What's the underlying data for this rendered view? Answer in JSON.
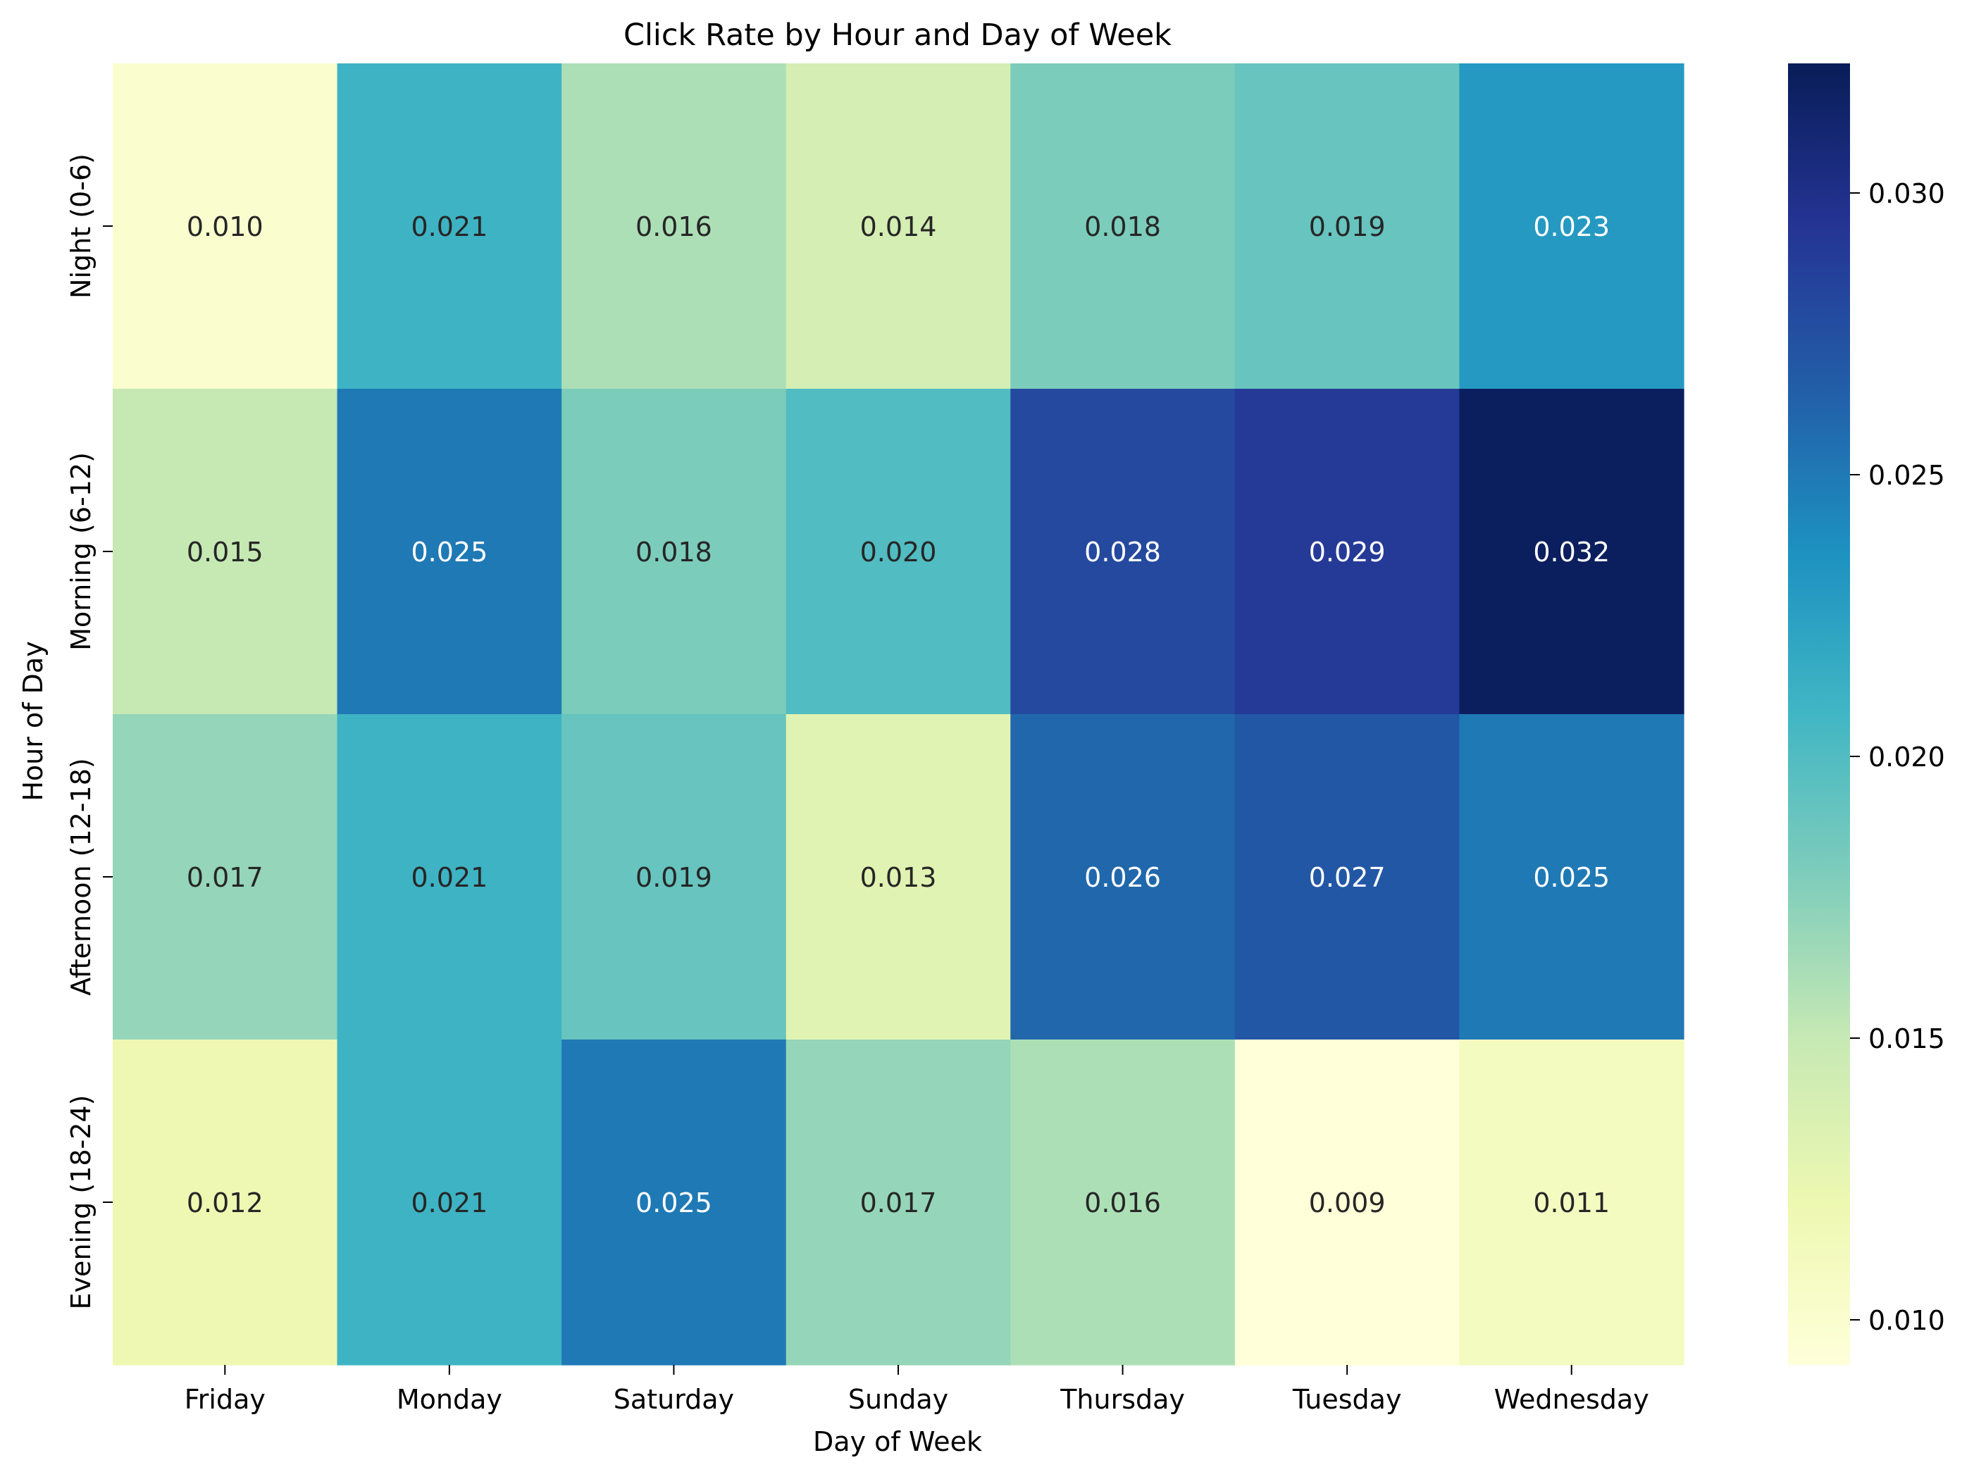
{
  "chart_data": {
    "type": "heatmap",
    "title": "Click Rate by Hour and Day of Week",
    "xlabel": "Day of Week",
    "ylabel": "Hour of Day",
    "x_categories": [
      "Friday",
      "Monday",
      "Saturday",
      "Sunday",
      "Thursday",
      "Tuesday",
      "Wednesday"
    ],
    "y_categories": [
      "Night (0-6)",
      "Morning (6-12)",
      "Afternoon (12-18)",
      "Evening (18-24)"
    ],
    "values": [
      [
        0.01,
        0.021,
        0.016,
        0.014,
        0.018,
        0.019,
        0.023
      ],
      [
        0.015,
        0.025,
        0.018,
        0.02,
        0.028,
        0.029,
        0.032
      ],
      [
        0.017,
        0.021,
        0.019,
        0.013,
        0.026,
        0.027,
        0.025
      ],
      [
        0.012,
        0.021,
        0.025,
        0.017,
        0.016,
        0.009,
        0.011
      ]
    ],
    "value_format": "0.000",
    "colormap": "YlGnBu",
    "colorbar": {
      "range": [
        0.0092,
        0.0323
      ],
      "ticks": [
        0.01,
        0.015,
        0.02,
        0.025,
        0.03
      ],
      "tick_labels": [
        "0.010",
        "0.015",
        "0.020",
        "0.025",
        "0.030"
      ]
    },
    "cmap_stops": [
      "#ffffd9",
      "#edf8b1",
      "#c7e9b4",
      "#7fcdbb",
      "#41b6c4",
      "#1d91c0",
      "#225ea8",
      "#253494",
      "#081d58"
    ]
  }
}
